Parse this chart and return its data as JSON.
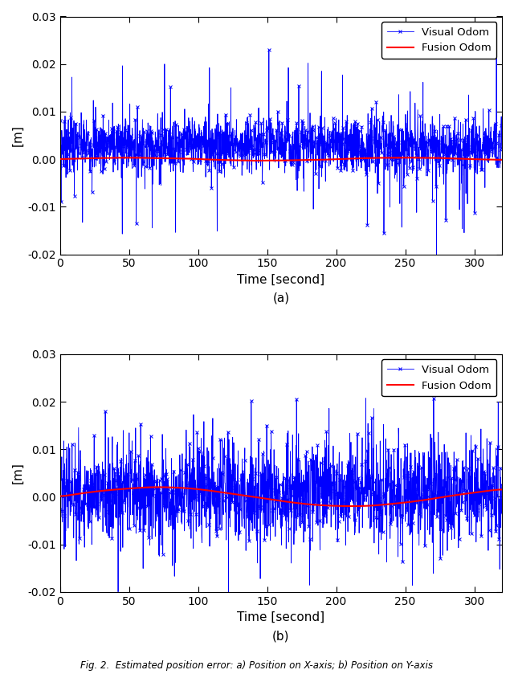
{
  "title_a": "(a)",
  "title_b": "(b)",
  "xlabel": "Time [second]",
  "ylabel": "[m]",
  "xlim": [
    0,
    320
  ],
  "ylim": [
    -0.02,
    0.03
  ],
  "xticks": [
    0,
    50,
    100,
    150,
    200,
    250,
    300
  ],
  "yticks": [
    -0.02,
    -0.01,
    0,
    0.01,
    0.02,
    0.03
  ],
  "legend_labels": [
    "Visual Odom",
    "Fusion Odom"
  ],
  "visual_color": "#0000FF",
  "fusion_color": "#FF0000",
  "fig_caption": "Fig. 2.  Estimated position error: a) Position on X-axis; b) Position on Y-axis",
  "figsize": [
    6.4,
    8.39
  ],
  "dpi": 100
}
